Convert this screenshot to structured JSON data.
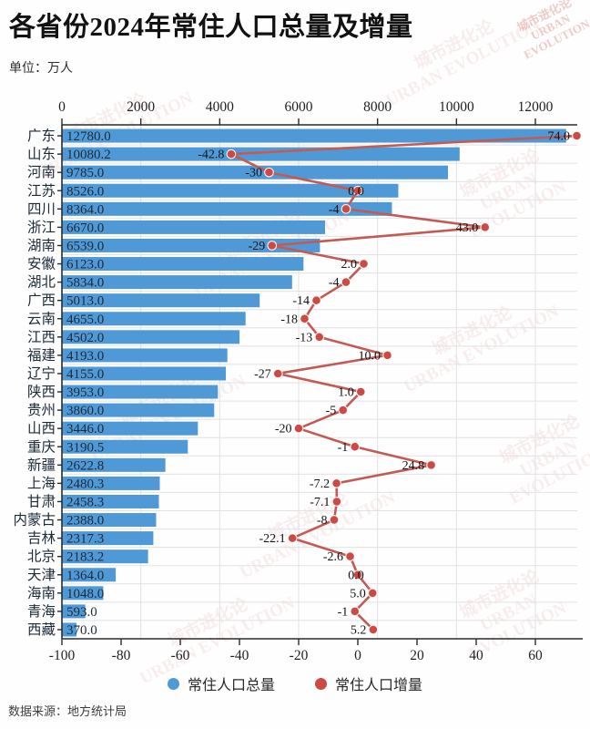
{
  "page": {
    "title": "各省份2024年常住人口总量及增量",
    "unit_label": "单位：万人",
    "source": "数据来源：地方统计局",
    "watermark": "城市进化论\nURBAN EVOLUTION"
  },
  "legend": [
    {
      "label": "常住人口总量",
      "color": "#4f9ad6",
      "shape": "circle"
    },
    {
      "label": "常住人口增量",
      "color": "#cc4a44",
      "shape": "circle"
    }
  ],
  "chart_data": {
    "type": "bar",
    "subtype": "horizontal-bar-with-line",
    "title": "各省份2024年常住人口总量及增量",
    "unit": "万人",
    "categories": [
      "广东",
      "山东",
      "河南",
      "江苏",
      "四川",
      "浙江",
      "湖南",
      "安徽",
      "湖北",
      "广西",
      "云南",
      "江西",
      "福建",
      "辽宁",
      "陕西",
      "贵州",
      "山西",
      "重庆",
      "新疆",
      "上海",
      "甘肃",
      "内蒙古",
      "吉林",
      "北京",
      "天津",
      "海南",
      "青海",
      "西藏"
    ],
    "series": [
      {
        "name": "常住人口总量",
        "type": "bar",
        "axis": "top",
        "color": "#4f9ad6",
        "values": [
          12780.0,
          10080.2,
          9785.0,
          8526.0,
          8364.0,
          6670.0,
          6539.0,
          6123.0,
          5834.0,
          5013.0,
          4655.0,
          4502.0,
          4193.0,
          4155.0,
          3953.0,
          3860.0,
          3446.0,
          3190.5,
          2622.8,
          2480.3,
          2458.3,
          2388.0,
          2317.3,
          2183.2,
          1364.0,
          1048.0,
          593.0,
          370.0
        ],
        "labels": [
          "12780.0",
          "10080.2",
          "9785.0",
          "8526.0",
          "8364.0",
          "6670.0",
          "6539.0",
          "6123.0",
          "5834.0",
          "5013.0",
          "4655.0",
          "4502.0",
          "4193.0",
          "4155.0",
          "3953.0",
          "3860.0",
          "3446.0",
          "3190.5",
          "2622.8",
          "2480.3",
          "2458.3",
          "2388.0",
          "2317.3",
          "2183.2",
          "1364.0",
          "1048.0",
          "593.0",
          "370.0"
        ]
      },
      {
        "name": "常住人口增量",
        "type": "line",
        "axis": "bottom",
        "color": "#cc4a44",
        "line_color": "#c25b55",
        "values": [
          74.0,
          -42.8,
          -30,
          0.0,
          -4,
          43.0,
          -29,
          2.0,
          -4,
          -14,
          -18,
          -13,
          10.0,
          -27,
          1.0,
          -5,
          -20,
          -1,
          24.8,
          -7.2,
          -7.1,
          -8,
          -22.1,
          -2.6,
          0.0,
          5.0,
          -1,
          5.2
        ],
        "labels": [
          "74.0",
          "-42.8",
          "-30",
          "0.0",
          "-4",
          "43.0",
          "-29",
          "2.0",
          "-4",
          "-14",
          "-18",
          "-13",
          "10.0",
          "-27",
          "1.0",
          "-5",
          "-20",
          "-1",
          "24.8",
          "-7.2",
          "-7.1",
          "-8",
          "-22.1",
          "-2.6",
          "0.0",
          "5.0",
          "-1",
          "5.2"
        ]
      }
    ],
    "top_axis": {
      "ticks": [
        0,
        2000,
        4000,
        6000,
        8000,
        10000,
        12000
      ],
      "range": [
        0,
        13050
      ]
    },
    "bottom_axis": {
      "ticks": [
        -100,
        -80,
        -60,
        -40,
        -20,
        0,
        20,
        40,
        60
      ],
      "range": [
        -100,
        74
      ]
    },
    "grid": true,
    "legend_position": "bottom",
    "text_color": "#1c2a3a",
    "grid_color": "#e2e2e2",
    "axis_color": "#2b2b2b"
  }
}
